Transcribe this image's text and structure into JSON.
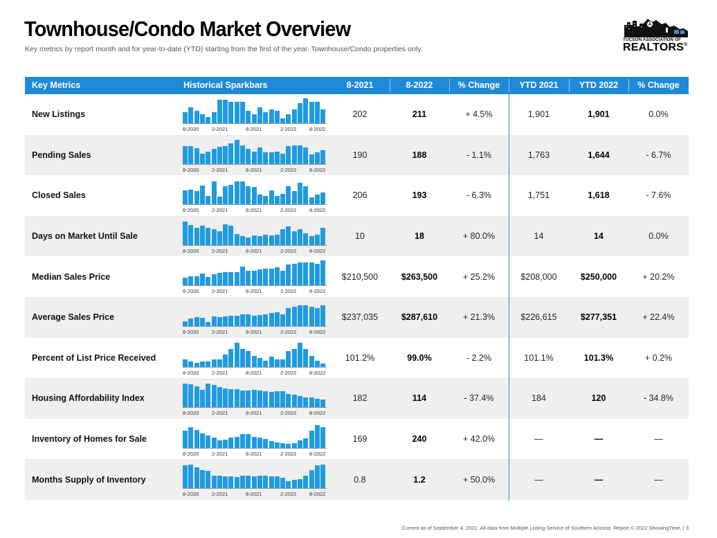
{
  "title": "Townhouse/Condo Market Overview",
  "subtitle": "Key metrics by report month and for year-to-date (YTD) starting from the first of the year. Townhouse/Condo properties only.",
  "logo": {
    "org_line": "TUCSON ASSOCIATION OF",
    "brand": "REALTORS",
    "reg_mark": "®"
  },
  "table": {
    "headers": {
      "metric": "Key Metrics",
      "sparkbars": "Historical Sparkbars",
      "month_prev": "8-2021",
      "month_curr": "8-2022",
      "month_change": "% Change",
      "ytd_prev": "YTD 2021",
      "ytd_curr": "YTD 2022",
      "ytd_change": "% Change"
    },
    "spark_labels": [
      "8-2020",
      "2-2021",
      "8-2021",
      "2-2022",
      "8-2022"
    ]
  },
  "chart_data": {
    "type": "bar",
    "categories": [
      "8-2020",
      "9-2020",
      "10-2020",
      "11-2020",
      "12-2020",
      "1-2021",
      "2-2021",
      "3-2021",
      "4-2021",
      "5-2021",
      "6-2021",
      "7-2021",
      "8-2021",
      "9-2021",
      "10-2021",
      "11-2021",
      "12-2021",
      "1-2022",
      "2-2022",
      "3-2022",
      "4-2022",
      "5-2022",
      "6-2022",
      "7-2022",
      "8-2022"
    ],
    "series": [
      {
        "name": "New Listings",
        "month_prev": "202",
        "month_curr": "211",
        "month_change": "+ 4.5%",
        "ytd_prev": "1,901",
        "ytd_curr": "1,901",
        "ytd_change": "0.0%",
        "values": [
          0.45,
          0.65,
          0.5,
          0.35,
          0.25,
          0.45,
          0.95,
          0.95,
          0.85,
          0.85,
          0.85,
          0.5,
          0.35,
          0.65,
          0.45,
          0.55,
          0.5,
          0.2,
          0.35,
          0.55,
          0.8,
          1.0,
          0.85,
          0.85,
          0.55
        ]
      },
      {
        "name": "Pending Sales",
        "month_prev": "190",
        "month_curr": "188",
        "month_change": "- 1.1%",
        "ytd_prev": "1,763",
        "ytd_curr": "1,644",
        "ytd_change": "- 6.7%",
        "values": [
          0.72,
          0.7,
          0.62,
          0.4,
          0.5,
          0.6,
          0.68,
          0.72,
          0.82,
          0.95,
          0.75,
          0.6,
          0.5,
          0.65,
          0.45,
          0.45,
          0.48,
          0.4,
          0.7,
          0.75,
          0.75,
          0.65,
          0.38,
          0.45,
          0.55
        ]
      },
      {
        "name": "Closed Sales",
        "month_prev": "206",
        "month_curr": "193",
        "month_change": "- 6.3%",
        "ytd_prev": "1,751",
        "ytd_curr": "1,618",
        "ytd_change": "- 7.6%",
        "values": [
          0.55,
          0.6,
          0.52,
          0.75,
          0.35,
          0.92,
          0.3,
          0.72,
          0.78,
          0.92,
          0.92,
          0.72,
          0.7,
          0.4,
          0.35,
          0.55,
          0.35,
          0.42,
          0.72,
          0.52,
          0.88,
          0.72,
          0.28,
          0.4,
          0.48
        ]
      },
      {
        "name": "Days on Market Until Sale",
        "month_prev": "10",
        "month_curr": "18",
        "month_change": "+ 80.0%",
        "ytd_prev": "14",
        "ytd_curr": "14",
        "ytd_change": "0.0%",
        "values": [
          0.95,
          0.8,
          0.7,
          0.78,
          0.68,
          0.62,
          0.55,
          0.82,
          0.78,
          0.45,
          0.35,
          0.3,
          0.38,
          0.35,
          0.4,
          0.38,
          0.4,
          0.62,
          0.75,
          0.55,
          0.62,
          0.48,
          0.35,
          0.42,
          0.68
        ]
      },
      {
        "name": "Median Sales Price",
        "month_prev": "$210,500",
        "month_curr": "$263,500",
        "month_change": "+ 25.2%",
        "ytd_prev": "$208,000",
        "ytd_curr": "$250,000",
        "ytd_change": "+ 20.2%",
        "values": [
          0.32,
          0.38,
          0.38,
          0.48,
          0.35,
          0.45,
          0.52,
          0.55,
          0.55,
          0.55,
          0.75,
          0.6,
          0.6,
          0.65,
          0.68,
          0.68,
          0.72,
          0.6,
          0.85,
          0.88,
          0.92,
          0.92,
          0.92,
          0.88,
          1.0
        ]
      },
      {
        "name": "Average Sales Price",
        "month_prev": "$237,035",
        "month_curr": "$287,610",
        "month_change": "+ 21.3%",
        "ytd_prev": "$226,615",
        "ytd_curr": "$277,351",
        "ytd_change": "+ 22.4%",
        "values": [
          0.2,
          0.3,
          0.35,
          0.32,
          0.18,
          0.38,
          0.35,
          0.4,
          0.42,
          0.42,
          0.48,
          0.48,
          0.42,
          0.45,
          0.48,
          0.52,
          0.55,
          0.48,
          0.72,
          0.78,
          0.82,
          0.82,
          0.78,
          0.72,
          0.82
        ]
      },
      {
        "name": "Percent of List Price Received",
        "month_prev": "101.2%",
        "month_curr": "99.0%",
        "month_change": "- 2.2%",
        "ytd_prev": "101.1%",
        "ytd_curr": "101.3%",
        "ytd_change": "+ 0.2%",
        "values": [
          0.3,
          0.2,
          0.15,
          0.2,
          0.2,
          0.3,
          0.3,
          0.48,
          0.7,
          0.95,
          0.72,
          0.62,
          0.42,
          0.35,
          0.25,
          0.4,
          0.3,
          0.28,
          0.62,
          0.72,
          0.95,
          0.72,
          0.42,
          0.25,
          0.12
        ]
      },
      {
        "name": "Housing Affordability Index",
        "month_prev": "182",
        "month_curr": "114",
        "month_change": "- 37.4%",
        "ytd_prev": "184",
        "ytd_curr": "120",
        "ytd_change": "- 34.8%",
        "values": [
          0.95,
          0.92,
          0.85,
          0.7,
          0.95,
          0.88,
          0.82,
          0.75,
          0.72,
          0.72,
          0.68,
          0.68,
          0.7,
          0.68,
          0.65,
          0.62,
          0.65,
          0.65,
          0.52,
          0.5,
          0.45,
          0.4,
          0.38,
          0.35,
          0.32
        ]
      },
      {
        "name": "Inventory of Homes for Sale",
        "month_prev": "169",
        "month_curr": "240",
        "month_change": "+ 42.0%",
        "ytd_prev": "—",
        "ytd_curr": "—",
        "ytd_change": "—",
        "values": [
          0.7,
          0.82,
          0.72,
          0.58,
          0.5,
          0.42,
          0.3,
          0.32,
          0.42,
          0.45,
          0.55,
          0.55,
          0.45,
          0.4,
          0.35,
          0.28,
          0.22,
          0.2,
          0.15,
          0.2,
          0.3,
          0.38,
          0.68,
          0.92,
          0.82
        ]
      },
      {
        "name": "Months Supply of Inventory",
        "month_prev": "0.8",
        "month_curr": "1.2",
        "month_change": "+ 50.0%",
        "ytd_prev": "—",
        "ytd_curr": "—",
        "ytd_change": "—",
        "values": [
          0.92,
          0.95,
          0.85,
          0.72,
          0.7,
          0.5,
          0.5,
          0.48,
          0.48,
          0.45,
          0.5,
          0.5,
          0.48,
          0.5,
          0.52,
          0.48,
          0.48,
          0.42,
          0.3,
          0.35,
          0.38,
          0.5,
          0.72,
          0.92,
          0.95
        ]
      }
    ]
  },
  "footer": "Current as of September 4, 2022. All data from Multiple Listing Service of Southern Arizona. Report © 2022 ShowingTime.  |  3",
  "colors": {
    "header_bg": "#1f8ad8",
    "bar": "#1f9be0",
    "row_shade": "#efefef",
    "divider": "#1f8ad8"
  }
}
